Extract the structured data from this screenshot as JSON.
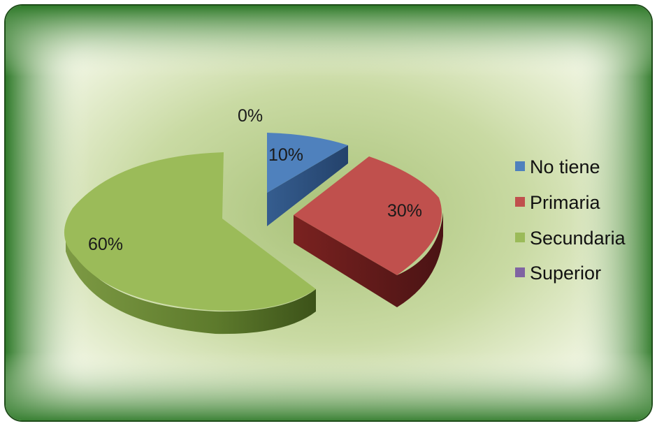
{
  "chart_data": {
    "type": "pie",
    "style": "3d-exploded",
    "categories": [
      "No tiene",
      "Primaria",
      "Secundaria",
      "Superior"
    ],
    "values": [
      10,
      30,
      60,
      0
    ],
    "value_labels": [
      "10%",
      "30%",
      "60%",
      "0%"
    ],
    "legend_placement": "right",
    "colors": {
      "No tiene": "#4f81bd",
      "Primaria": "#c0504d",
      "Secundaria": "#9bbb59",
      "Superior": "#8064a2"
    }
  },
  "legend": {
    "items": [
      {
        "label": "No tiene"
      },
      {
        "label": "Primaria"
      },
      {
        "label": "Secundaria"
      },
      {
        "label": "Superior"
      }
    ]
  },
  "frame": {
    "outer_color": "#2f7a2a",
    "inner_color": "#f3f7e6",
    "center_color": "#a9c279"
  }
}
